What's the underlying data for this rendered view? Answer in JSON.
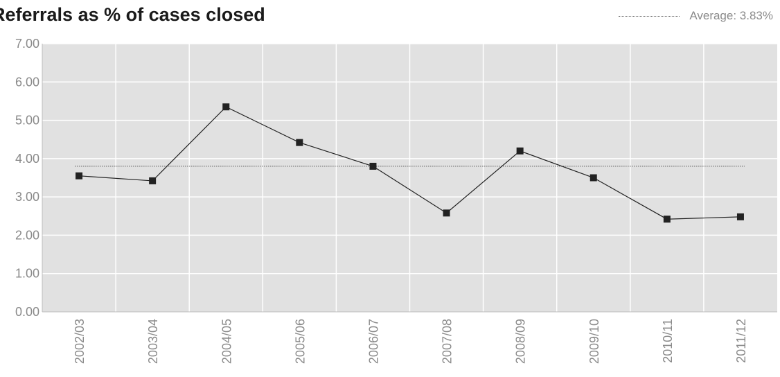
{
  "chart_data": {
    "type": "line",
    "title": "Referrals as % of cases closed",
    "categories": [
      "2002/03",
      "2003/04",
      "2004/05",
      "2005/06",
      "2006/07",
      "2007/08",
      "2008/09",
      "2009/10",
      "2010/11",
      "2011/12"
    ],
    "series": [
      {
        "values": [
          3.55,
          3.42,
          5.35,
          4.42,
          3.8,
          2.58,
          4.2,
          3.5,
          2.42,
          2.48
        ]
      }
    ],
    "average": {
      "label": "Average: 3.83%",
      "value": 3.8
    },
    "ylim": [
      0,
      7
    ],
    "yticks": [
      "0.00",
      "1.00",
      "2.00",
      "3.00",
      "4.00",
      "5.00",
      "6.00",
      "7.00"
    ],
    "xlabel": "",
    "ylabel": "",
    "grid": true,
    "legend": "top-right",
    "colors": {
      "plot_bg": "#e1e1e1",
      "grid": "#ffffff",
      "line": "#222222",
      "marker": "#222222",
      "average": "#555555",
      "tick_text": "#8a8a8a"
    }
  }
}
